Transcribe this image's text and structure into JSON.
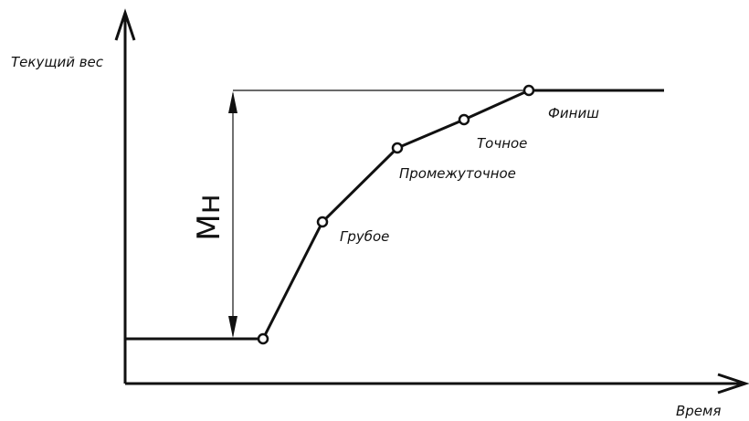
{
  "axes": {
    "y_label": "Текущий вес",
    "x_label": "Время"
  },
  "dimension_label": "Мн",
  "stages": [
    {
      "label": "Грубое"
    },
    {
      "label": "Промежуточное"
    },
    {
      "label": "Точное"
    },
    {
      "label": "Финиш"
    }
  ]
}
